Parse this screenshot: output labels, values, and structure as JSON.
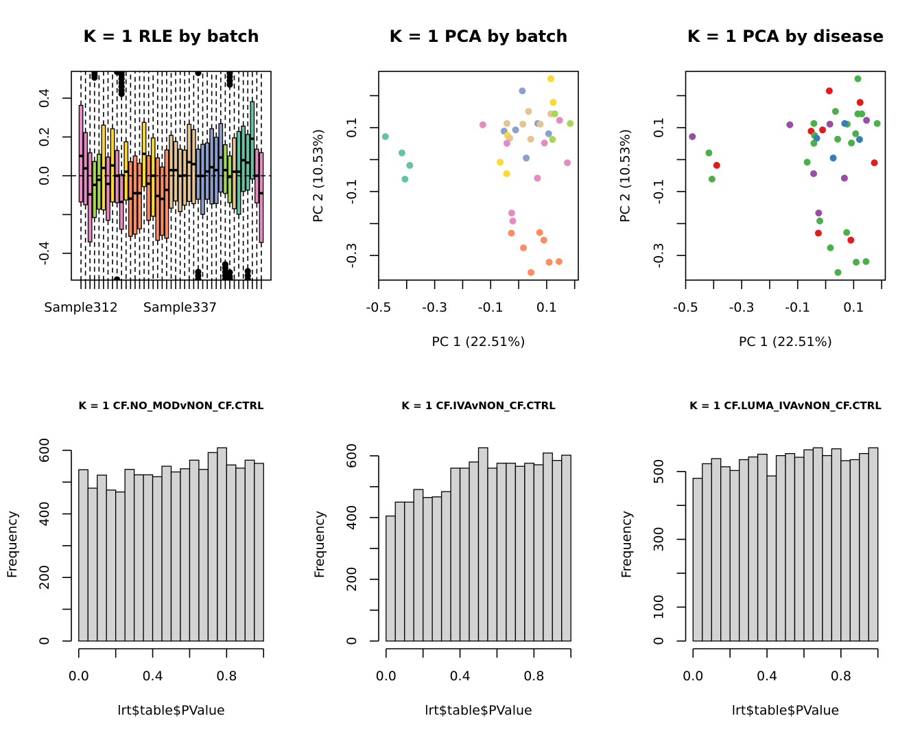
{
  "figure": {
    "layout": "2 rows x 3 panels",
    "palette_batch": {
      "pink": "#E78AC3",
      "green": "#A6D854",
      "yellow": "#FFD92F",
      "orange": "#FC8D62",
      "tan": "#E5C494",
      "blue": "#8DA0CB",
      "teal": "#66C2A5"
    },
    "palette_disease": {
      "red": "#E41A1C",
      "blue": "#377EB8",
      "green": "#4DAF4A",
      "purple": "#984EA3"
    },
    "histogram_fill": "#D3D3D3"
  },
  "chart_data": [
    {
      "type": "boxplot",
      "title": "K = 1 RLE by batch",
      "xlabel": "",
      "ylabel": "",
      "ylim": [
        -0.538,
        0.538
      ],
      "yticks": [
        -0.4,
        -0.2,
        0.0,
        0.2,
        0.4
      ],
      "ytick_labels": [
        "-0.4",
        "",
        "0.0",
        "0.2",
        "0.4"
      ],
      "xtick_labels_visible": [
        {
          "box_index": 0,
          "label": "Sample312"
        },
        {
          "box_index": 22,
          "label": "Sample337"
        }
      ],
      "reference_line_y": 0.0,
      "whiskers": "extend beyond axis limits (dashed)",
      "boxes": [
        {
          "color": "#E78AC3",
          "q1": -0.135,
          "median": 0.102,
          "q3": 0.363
        },
        {
          "color": "#E78AC3",
          "q1": -0.15,
          "median": 0.038,
          "q3": 0.222
        },
        {
          "color": "#E78AC3",
          "q1": -0.341,
          "median": -0.096,
          "q3": 0.118
        },
        {
          "color": "#A6D854",
          "q1": -0.215,
          "median": -0.047,
          "q3": 0.073
        },
        {
          "color": "#A6D854",
          "q1": -0.172,
          "median": -0.021,
          "q3": 0.111
        },
        {
          "color": "#FFD92F",
          "q1": -0.176,
          "median": 0.04,
          "q3": 0.261
        },
        {
          "color": "#E78AC3",
          "q1": -0.23,
          "median": -0.042,
          "q3": 0.096
        },
        {
          "color": "#FFD92F",
          "q1": -0.135,
          "median": 0.053,
          "q3": 0.242
        },
        {
          "color": "#E78AC3",
          "q1": -0.139,
          "median": 0.0,
          "q3": 0.13
        },
        {
          "color": "#E78AC3",
          "q1": -0.276,
          "median": -0.135,
          "q3": 0.006
        },
        {
          "color": "#FFD92F",
          "q1": -0.125,
          "median": 0.021,
          "q3": 0.175
        },
        {
          "color": "#FC8D62",
          "q1": -0.312,
          "median": -0.118,
          "q3": 0.072
        },
        {
          "color": "#FC8D62",
          "q1": -0.301,
          "median": -0.09,
          "q3": 0.102
        },
        {
          "color": "#FC8D62",
          "q1": -0.274,
          "median": -0.09,
          "q3": 0.064
        },
        {
          "color": "#FFD92F",
          "q1": -0.056,
          "median": 0.113,
          "q3": 0.275
        },
        {
          "color": "#FC8D62",
          "q1": -0.23,
          "median": -0.041,
          "q3": 0.103
        },
        {
          "color": "#FFD92F",
          "q1": -0.209,
          "median": 0.0,
          "q3": 0.195
        },
        {
          "color": "#FC8D62",
          "q1": -0.333,
          "median": -0.104,
          "q3": 0.092
        },
        {
          "color": "#FC8D62",
          "q1": -0.307,
          "median": -0.119,
          "q3": 0.045
        },
        {
          "color": "#FC8D62",
          "q1": -0.322,
          "median": -0.073,
          "q3": 0.133
        },
        {
          "color": "#E5C494",
          "q1": -0.167,
          "median": 0.029,
          "q3": 0.208
        },
        {
          "color": "#E5C494",
          "q1": -0.13,
          "median": 0.029,
          "q3": 0.176
        },
        {
          "color": "#E5C494",
          "q1": -0.185,
          "median": -0.001,
          "q3": 0.137
        },
        {
          "color": "#E5C494",
          "q1": -0.152,
          "median": 0.001,
          "q3": 0.132
        },
        {
          "color": "#E5C494",
          "q1": -0.132,
          "median": 0.07,
          "q3": 0.265
        },
        {
          "color": "#E5C494",
          "q1": -0.144,
          "median": 0.06,
          "q3": 0.238
        },
        {
          "color": "#8DA0CB",
          "q1": -0.121,
          "median": -0.001,
          "q3": 0.137
        },
        {
          "color": "#8DA0CB",
          "q1": -0.199,
          "median": -0.001,
          "q3": 0.162
        },
        {
          "color": "#8DA0CB",
          "q1": -0.121,
          "median": 0.022,
          "q3": 0.169
        },
        {
          "color": "#8DA0CB",
          "q1": -0.145,
          "median": 0.044,
          "q3": 0.242
        },
        {
          "color": "#8DA0CB",
          "q1": -0.143,
          "median": 0.029,
          "q3": 0.198
        },
        {
          "color": "#8DA0CB",
          "q1": -0.084,
          "median": 0.094,
          "q3": 0.269
        },
        {
          "color": "#A6D854",
          "q1": -0.091,
          "median": 0.029,
          "q3": 0.16
        },
        {
          "color": "#A6D854",
          "q1": -0.139,
          "median": -0.006,
          "q3": 0.102
        },
        {
          "color": "#E5C494",
          "q1": -0.17,
          "median": 0.021,
          "q3": 0.195
        },
        {
          "color": "#66C2A5",
          "q1": -0.199,
          "median": 0.021,
          "q3": 0.228
        },
        {
          "color": "#66C2A5",
          "q1": -0.081,
          "median": 0.08,
          "q3": 0.256
        },
        {
          "color": "#66C2A5",
          "q1": -0.074,
          "median": 0.068,
          "q3": 0.213
        },
        {
          "color": "#66C2A5",
          "q1": -0.017,
          "median": 0.191,
          "q3": 0.382
        },
        {
          "color": "#E78AC3",
          "q1": -0.14,
          "median": 0.0,
          "q3": 0.137
        },
        {
          "color": "#E78AC3",
          "q1": -0.344,
          "median": -0.09,
          "q3": 0.119
        }
      ],
      "outliers": [
        {
          "box_index": 3,
          "values": [
            0.506,
            0.52,
            0.535
          ]
        },
        {
          "box_index": 8,
          "values": [
            0.535,
            -0.535
          ]
        },
        {
          "box_index": 9,
          "values": [
            0.422,
            0.44,
            0.46,
            0.48,
            0.5,
            0.52,
            0.535
          ]
        },
        {
          "box_index": 26,
          "values": [
            0.53,
            -0.496,
            -0.515,
            -0.535
          ]
        },
        {
          "box_index": 32,
          "values": [
            -0.457,
            -0.475,
            -0.495,
            -0.515,
            -0.535
          ]
        },
        {
          "box_index": 33,
          "values": [
            0.47,
            0.49,
            0.51,
            0.53,
            -0.498,
            -0.52,
            -0.535
          ]
        },
        {
          "box_index": 37,
          "values": [
            -0.492,
            -0.515,
            -0.535
          ]
        }
      ]
    },
    {
      "type": "scatter",
      "title": "K = 1 PCA by batch",
      "xlabel": "PC 1 (22.51%)",
      "ylabel": "PC 2 (10.53%)",
      "xlim": [
        -0.5,
        0.213
      ],
      "ylim": [
        -0.377,
        0.276
      ],
      "xticks": [
        -0.5,
        -0.4,
        -0.3,
        -0.2,
        -0.1,
        0.0,
        0.1,
        0.2
      ],
      "xtick_labels": [
        "-0.5",
        "",
        "-0.3",
        "",
        "-0.1",
        "",
        "0.1",
        ""
      ],
      "yticks": [
        -0.3,
        -0.2,
        -0.1,
        0.0,
        0.1,
        0.2
      ],
      "ytick_labels": [
        "-0.3",
        "",
        "-0.1",
        "",
        "0.1",
        ""
      ],
      "color_by": "batch",
      "points": [
        {
          "x": 0.115,
          "y": 0.253,
          "color": "#FFD92F"
        },
        {
          "x": 0.013,
          "y": 0.215,
          "color": "#8DA0CB"
        },
        {
          "x": 0.123,
          "y": 0.179,
          "color": "#FFD92F"
        },
        {
          "x": 0.035,
          "y": 0.151,
          "color": "#E5C494"
        },
        {
          "x": 0.115,
          "y": 0.143,
          "color": "#E5C494"
        },
        {
          "x": 0.129,
          "y": 0.143,
          "color": "#A6D854"
        },
        {
          "x": 0.146,
          "y": 0.123,
          "color": "#E78AC3"
        },
        {
          "x": 0.184,
          "y": 0.113,
          "color": "#A6D854"
        },
        {
          "x": -0.128,
          "y": 0.109,
          "color": "#E78AC3"
        },
        {
          "x": -0.042,
          "y": 0.113,
          "color": "#E5C494"
        },
        {
          "x": 0.015,
          "y": 0.111,
          "color": "#E5C494"
        },
        {
          "x": 0.068,
          "y": 0.113,
          "color": "#8DA0CB"
        },
        {
          "x": 0.077,
          "y": 0.111,
          "color": "#E5C494"
        },
        {
          "x": -0.052,
          "y": 0.089,
          "color": "#8DA0CB"
        },
        {
          "x": -0.011,
          "y": 0.093,
          "color": "#8DA0CB"
        },
        {
          "x": -0.04,
          "y": 0.076,
          "color": "#FFD92F"
        },
        {
          "x": -0.032,
          "y": 0.067,
          "color": "#E5C494"
        },
        {
          "x": 0.043,
          "y": 0.064,
          "color": "#E5C494"
        },
        {
          "x": 0.107,
          "y": 0.081,
          "color": "#8DA0CB"
        },
        {
          "x": 0.121,
          "y": 0.063,
          "color": "#A6D854"
        },
        {
          "x": -0.042,
          "y": 0.051,
          "color": "#E78AC3"
        },
        {
          "x": 0.092,
          "y": 0.052,
          "color": "#E78AC3"
        },
        {
          "x": 0.027,
          "y": 0.005,
          "color": "#8DA0CB"
        },
        {
          "x": -0.066,
          "y": -0.008,
          "color": "#FFD92F"
        },
        {
          "x": 0.174,
          "y": -0.01,
          "color": "#E78AC3"
        },
        {
          "x": -0.043,
          "y": -0.044,
          "color": "#FFD92F"
        },
        {
          "x": 0.067,
          "y": -0.058,
          "color": "#A6D854"
        },
        {
          "x": 0.067,
          "y": -0.058,
          "color": "#E78AC3"
        },
        {
          "x": -0.476,
          "y": 0.072,
          "color": "#66C2A5"
        },
        {
          "x": -0.417,
          "y": 0.021,
          "color": "#66C2A5"
        },
        {
          "x": -0.389,
          "y": -0.018,
          "color": "#66C2A5"
        },
        {
          "x": -0.406,
          "y": -0.061,
          "color": "#66C2A5"
        },
        {
          "x": -0.025,
          "y": -0.167,
          "color": "#E78AC3"
        },
        {
          "x": -0.021,
          "y": -0.192,
          "color": "#E78AC3"
        },
        {
          "x": -0.026,
          "y": -0.23,
          "color": "#FC8D62"
        },
        {
          "x": 0.075,
          "y": -0.228,
          "color": "#FC8D62"
        },
        {
          "x": 0.09,
          "y": -0.252,
          "color": "#FC8D62"
        },
        {
          "x": 0.017,
          "y": -0.276,
          "color": "#FC8D62"
        },
        {
          "x": 0.109,
          "y": -0.321,
          "color": "#FC8D62"
        },
        {
          "x": 0.144,
          "y": -0.319,
          "color": "#FC8D62"
        },
        {
          "x": 0.044,
          "y": -0.353,
          "color": "#FC8D62"
        }
      ]
    },
    {
      "type": "scatter",
      "title": "K = 1 PCA by disease",
      "xlabel": "PC 1 (22.51%)",
      "ylabel": "PC 2 (10.53%)",
      "xlim": [
        -0.5,
        0.213
      ],
      "ylim": [
        -0.377,
        0.276
      ],
      "xticks": [
        -0.5,
        -0.4,
        -0.3,
        -0.2,
        -0.1,
        0.0,
        0.1,
        0.2
      ],
      "xtick_labels": [
        "-0.5",
        "",
        "-0.3",
        "",
        "-0.1",
        "",
        "0.1",
        ""
      ],
      "yticks": [
        -0.3,
        -0.2,
        -0.1,
        0.0,
        0.1,
        0.2
      ],
      "ytick_labels": [
        "-0.3",
        "",
        "-0.1",
        "",
        "0.1",
        ""
      ],
      "color_by": "disease",
      "points": [
        {
          "x": 0.115,
          "y": 0.253,
          "color": "#4DAF4A"
        },
        {
          "x": 0.013,
          "y": 0.215,
          "color": "#E41A1C"
        },
        {
          "x": 0.123,
          "y": 0.179,
          "color": "#E41A1C"
        },
        {
          "x": 0.035,
          "y": 0.151,
          "color": "#4DAF4A"
        },
        {
          "x": 0.115,
          "y": 0.143,
          "color": "#4DAF4A"
        },
        {
          "x": 0.129,
          "y": 0.143,
          "color": "#4DAF4A"
        },
        {
          "x": 0.146,
          "y": 0.123,
          "color": "#984EA3"
        },
        {
          "x": 0.184,
          "y": 0.113,
          "color": "#4DAF4A"
        },
        {
          "x": -0.128,
          "y": 0.109,
          "color": "#984EA3"
        },
        {
          "x": -0.042,
          "y": 0.113,
          "color": "#4DAF4A"
        },
        {
          "x": 0.015,
          "y": 0.111,
          "color": "#984EA3"
        },
        {
          "x": 0.077,
          "y": 0.111,
          "color": "#4DAF4A"
        },
        {
          "x": 0.068,
          "y": 0.113,
          "color": "#377EB8"
        },
        {
          "x": -0.052,
          "y": 0.089,
          "color": "#E41A1C"
        },
        {
          "x": -0.011,
          "y": 0.093,
          "color": "#E41A1C"
        },
        {
          "x": -0.04,
          "y": 0.076,
          "color": "#4DAF4A"
        },
        {
          "x": -0.032,
          "y": 0.067,
          "color": "#377EB8"
        },
        {
          "x": 0.043,
          "y": 0.064,
          "color": "#4DAF4A"
        },
        {
          "x": 0.107,
          "y": 0.081,
          "color": "#4DAF4A"
        },
        {
          "x": 0.121,
          "y": 0.063,
          "color": "#377EB8"
        },
        {
          "x": -0.042,
          "y": 0.051,
          "color": "#4DAF4A"
        },
        {
          "x": 0.092,
          "y": 0.052,
          "color": "#4DAF4A"
        },
        {
          "x": 0.027,
          "y": 0.005,
          "color": "#377EB8"
        },
        {
          "x": -0.066,
          "y": -0.008,
          "color": "#4DAF4A"
        },
        {
          "x": 0.174,
          "y": -0.01,
          "color": "#E41A1C"
        },
        {
          "x": -0.043,
          "y": -0.044,
          "color": "#984EA3"
        },
        {
          "x": 0.067,
          "y": -0.058,
          "color": "#4DAF4A"
        },
        {
          "x": 0.067,
          "y": -0.058,
          "color": "#984EA3"
        },
        {
          "x": -0.476,
          "y": 0.072,
          "color": "#984EA3"
        },
        {
          "x": -0.417,
          "y": 0.021,
          "color": "#4DAF4A"
        },
        {
          "x": -0.389,
          "y": -0.018,
          "color": "#E41A1C"
        },
        {
          "x": -0.406,
          "y": -0.061,
          "color": "#4DAF4A"
        },
        {
          "x": -0.025,
          "y": -0.167,
          "color": "#984EA3"
        },
        {
          "x": -0.021,
          "y": -0.192,
          "color": "#4DAF4A"
        },
        {
          "x": -0.026,
          "y": -0.23,
          "color": "#E41A1C"
        },
        {
          "x": 0.075,
          "y": -0.228,
          "color": "#4DAF4A"
        },
        {
          "x": 0.09,
          "y": -0.252,
          "color": "#E41A1C"
        },
        {
          "x": 0.017,
          "y": -0.276,
          "color": "#4DAF4A"
        },
        {
          "x": 0.109,
          "y": -0.321,
          "color": "#4DAF4A"
        },
        {
          "x": 0.144,
          "y": -0.319,
          "color": "#4DAF4A"
        },
        {
          "x": 0.044,
          "y": -0.353,
          "color": "#4DAF4A"
        }
      ]
    },
    {
      "type": "bar",
      "subtype": "histogram",
      "title": "K = 1 CF.NO_MODvNON_CF.CTRL",
      "xlabel": "lrt$table$PValue",
      "ylabel": "Frequency",
      "bin_width": 0.05,
      "xlim": [
        0,
        1
      ],
      "xticks": [
        0,
        0.2,
        0.4,
        0.6,
        0.8,
        1.0
      ],
      "xtick_labels": [
        "0.0",
        "",
        "0.4",
        "",
        "0.8",
        ""
      ],
      "yticks": [
        0,
        100,
        200,
        300,
        400,
        500,
        600
      ],
      "ytick_labels": [
        "0",
        "",
        "200",
        "",
        "400",
        "",
        "600"
      ],
      "ylim": [
        0,
        608
      ],
      "values": [
        539,
        481,
        522,
        475,
        469,
        540,
        523,
        523,
        517,
        550,
        532,
        542,
        569,
        540,
        593,
        608,
        554,
        544,
        569,
        559
      ]
    },
    {
      "type": "bar",
      "subtype": "histogram",
      "title": "K = 1 CF.IVAvNON_CF.CTRL",
      "xlabel": "lrt$table$PValue",
      "ylabel": "Frequency",
      "bin_width": 0.05,
      "xlim": [
        0,
        1
      ],
      "xticks": [
        0,
        0.2,
        0.4,
        0.6,
        0.8,
        1.0
      ],
      "xtick_labels": [
        "0.0",
        "",
        "0.4",
        "",
        "0.8",
        ""
      ],
      "yticks": [
        0,
        100,
        200,
        300,
        400,
        500,
        600
      ],
      "ytick_labels": [
        "0",
        "",
        "200",
        "",
        "400",
        "",
        "600"
      ],
      "ylim": [
        0,
        626
      ],
      "values": [
        405,
        450,
        450,
        491,
        465,
        467,
        484,
        560,
        560,
        580,
        626,
        560,
        576,
        576,
        566,
        576,
        571,
        609,
        585,
        602
      ]
    },
    {
      "type": "bar",
      "subtype": "histogram",
      "title": "K = 1 CF.LUMA_IVAvNON_CF.CTRL",
      "xlabel": "lrt$table$PValue",
      "ylabel": "Frequency",
      "bin_width": 0.05,
      "xlim": [
        0,
        1
      ],
      "xticks": [
        0,
        0.2,
        0.4,
        0.6,
        0.8,
        1.0
      ],
      "xtick_labels": [
        "0.0",
        "",
        "0.4",
        "",
        "0.8",
        ""
      ],
      "yticks": [
        0,
        100,
        200,
        300,
        400,
        500
      ],
      "ytick_labels": [
        "0",
        "100",
        "",
        "300",
        "",
        "500"
      ],
      "ylim": [
        0,
        570
      ],
      "values": [
        480,
        523,
        538,
        514,
        503,
        535,
        543,
        551,
        487,
        547,
        553,
        542,
        564,
        570,
        547,
        567,
        532,
        535,
        553,
        570
      ]
    }
  ]
}
